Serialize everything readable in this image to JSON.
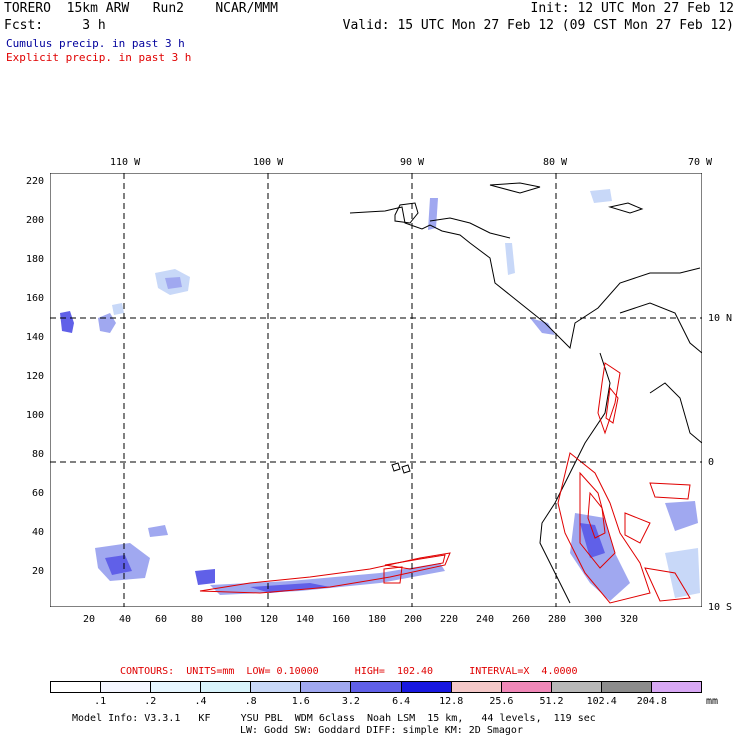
{
  "header": {
    "left_line1": "TORERO  15km ARW   Run2    NCAR/MMM",
    "left_line2": "Fcst:     3 h",
    "right_line1": "Init: 12 UTC Mon 27 Feb 12",
    "right_line2": "Valid: 15 UTC Mon 27 Feb 12 (09 CST Mon 27 Feb 12)"
  },
  "legend": {
    "cumulus": "Cumulus precip. in past 3 h",
    "explicit": "Explicit precip. in past 3 h",
    "cumulus_color": "#00009c",
    "explicit_color": "#e00000"
  },
  "axes": {
    "top": [
      "110 W",
      "100 W",
      "90 W",
      "80 W",
      "70 W"
    ],
    "right": [
      "10 N",
      "0",
      "10 S"
    ],
    "left": [
      "220",
      "200",
      "180",
      "160",
      "140",
      "120",
      "100",
      "80",
      "60",
      "40",
      "20"
    ],
    "bottom": [
      "20",
      "40",
      "60",
      "80",
      "100",
      "120",
      "140",
      "160",
      "180",
      "200",
      "220",
      "240",
      "260",
      "280",
      "300",
      "320"
    ]
  },
  "contours_info": "CONTOURS:  UNITS=mm  LOW= 0.10000      HIGH=  102.40      INTERVAL=X  4.0000",
  "colorbar": {
    "labels": [
      ".1",
      ".2",
      ".4",
      ".8",
      "1.6",
      "3.2",
      "6.4",
      "12.8",
      "25.6",
      "51.2",
      "102.4",
      "204.8"
    ],
    "unit": "mm",
    "colors": [
      "#ffffff",
      "#f4f6ff",
      "#e6f6ff",
      "#d8f3fb",
      "#c8d8f8",
      "#a0a8f0",
      "#6060e8",
      "#1818e0",
      "#f4c8c8",
      "#f088b8",
      "#b8b8b8",
      "#8c8c8c",
      "#d8a8f4"
    ]
  },
  "model_info": {
    "line1": "Model Info: V3.3.1   KF     YSU PBL  WDM 6class  Noah LSM  15 km,   44 levels,  119 sec",
    "line2": "LW: Godd SW: Goddard DIFF: simple KM: 2D Smagor"
  }
}
